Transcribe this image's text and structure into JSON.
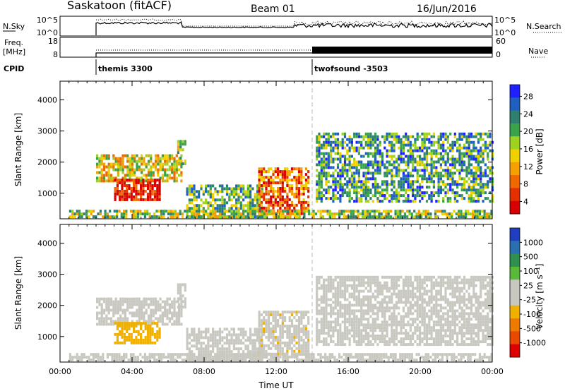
{
  "header": {
    "title": "Saskatoon (fitACF)",
    "beam": "Beam 01",
    "date": "16/Jun/2016"
  },
  "noise_panel": {
    "left_label": "N.Sky",
    "left_ticks": [
      "10^5",
      "10^0"
    ],
    "right_ticks": [
      "10^5",
      "10^0"
    ],
    "right_label": "N.Search"
  },
  "freq_panel": {
    "left_label_1": "Freq.",
    "left_label_2": "[MHz]",
    "left_ticks": [
      "18",
      "8"
    ],
    "right_ticks": [
      "60",
      "0"
    ],
    "right_label": "Nave"
  },
  "cpid": {
    "label": "CPID",
    "modes": [
      {
        "name": "themis 3300",
        "start_hour": 2.0
      },
      {
        "name": "twofsound -3503",
        "start_hour": 14.0
      }
    ]
  },
  "chart_data": [
    {
      "type": "heatmap",
      "name": "power",
      "xlabel": "Time UT",
      "ylabel": "Slant Range [km]",
      "xlim": [
        0,
        24
      ],
      "ylim": [
        180,
        4600
      ],
      "y_ticks": [
        1000,
        2000,
        3000,
        4000
      ],
      "colorbar": {
        "label": "Power [dB]",
        "ticks": [
          "4",
          "8",
          "12",
          "16",
          "20",
          "24",
          "28"
        ],
        "colors": [
          "#1f1fff",
          "#1f5fc0",
          "#2f7f6f",
          "#3aa34a",
          "#9fd21e",
          "#f0d000",
          "#f3a000",
          "#ef6800",
          "#e43000",
          "#d80000"
        ]
      },
      "regions": [
        {
          "t0": 2.0,
          "t1": 6.8,
          "r0": 1350,
          "r1": 2200,
          "level": 0.55
        },
        {
          "t0": 3.0,
          "t1": 5.5,
          "r0": 750,
          "r1": 1400,
          "level": 0.95
        },
        {
          "t0": 6.5,
          "t1": 7.0,
          "r0": 1900,
          "r1": 2650,
          "level": 0.4
        },
        {
          "t0": 7.0,
          "t1": 11.2,
          "r0": 200,
          "r1": 1200,
          "level": 0.35
        },
        {
          "t0": 11.0,
          "t1": 13.8,
          "r0": 300,
          "r1": 1800,
          "level": 0.75
        },
        {
          "t0": 14.2,
          "t1": 24.0,
          "r0": 700,
          "r1": 2900,
          "level": 0.3
        },
        {
          "t0": 0.5,
          "t1": 24.0,
          "r0": 200,
          "r1": 450,
          "level": 0.45
        }
      ]
    },
    {
      "type": "heatmap",
      "name": "velocity",
      "xlabel": "Time UT",
      "ylabel": "Slant Range [km]",
      "xlim": [
        0,
        24
      ],
      "ylim": [
        180,
        4600
      ],
      "x_ticks": [
        "00:00",
        "04:00",
        "08:00",
        "12:00",
        "16:00",
        "20:00",
        "00:00"
      ],
      "y_ticks": [
        1000,
        2000,
        3000,
        4000
      ],
      "colorbar": {
        "label": "Velocity [m s⁻¹]",
        "ticks": [
          "1000",
          "500",
          "100",
          "25",
          "-25",
          "-100",
          "-500",
          "-1000"
        ],
        "colors": [
          "#1f3fbf",
          "#2a6fae",
          "#2f8f4f",
          "#5ab83a",
          "#c8c8c0",
          "#c8c8c0",
          "#f0b000",
          "#ef7a00",
          "#e84800",
          "#dd0000"
        ]
      },
      "regions": [
        {
          "t0": 2.0,
          "t1": 6.8,
          "r0": 1350,
          "r1": 2200,
          "value": 0
        },
        {
          "t0": 3.0,
          "t1": 5.5,
          "r0": 750,
          "r1": 1400,
          "value": -300
        },
        {
          "t0": 6.5,
          "t1": 7.0,
          "r0": 1900,
          "r1": 2650,
          "value": 0
        },
        {
          "t0": 7.0,
          "t1": 11.2,
          "r0": 200,
          "r1": 1200,
          "value": 10
        },
        {
          "t0": 11.0,
          "t1": 13.8,
          "r0": 300,
          "r1": 1800,
          "value": -150
        },
        {
          "t0": 14.2,
          "t1": 24.0,
          "r0": 700,
          "r1": 2900,
          "value": 0
        },
        {
          "t0": 0.5,
          "t1": 24.0,
          "r0": 200,
          "r1": 450,
          "value": -80
        }
      ]
    }
  ]
}
